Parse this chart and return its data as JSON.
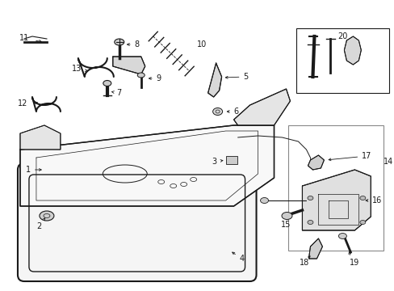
{
  "bg_color": "#ffffff",
  "line_color": "#1a1a1a",
  "fig_width": 4.89,
  "fig_height": 3.6,
  "dpi": 100,
  "xlim": [
    0,
    489
  ],
  "ylim": [
    0,
    360
  ]
}
